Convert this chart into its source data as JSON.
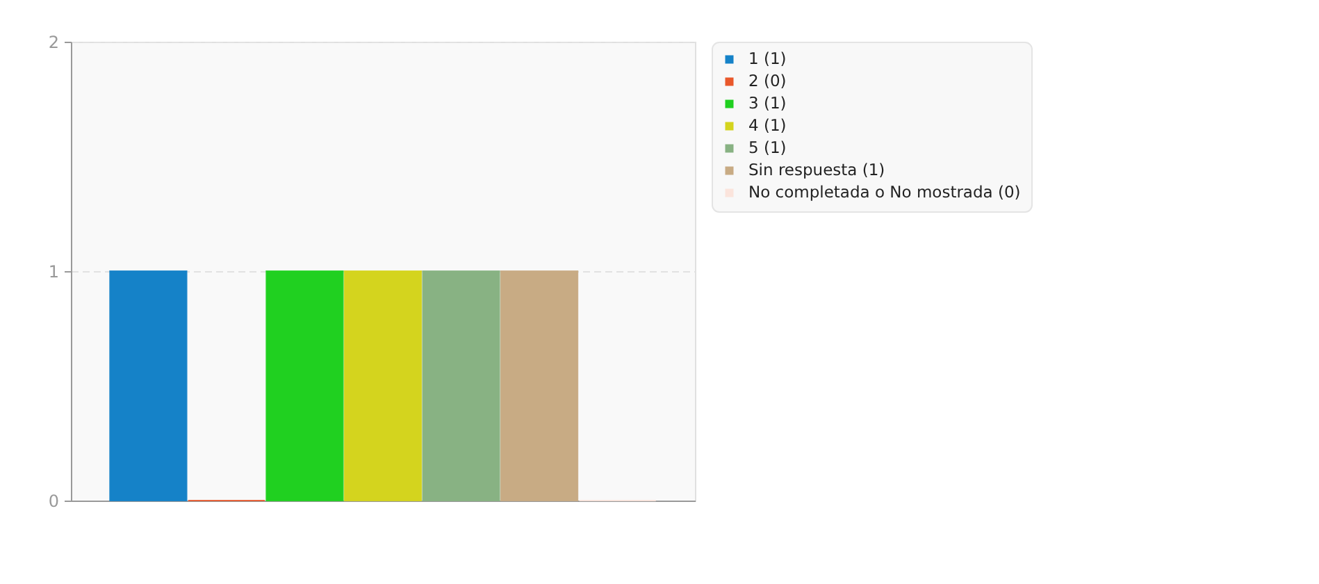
{
  "chart_data": {
    "type": "bar",
    "categories": [
      null,
      null,
      null,
      null,
      null,
      null,
      null
    ],
    "series": [
      {
        "name": "1 (1)",
        "color": "#1582c8",
        "values": [
          1,
          null,
          null,
          null,
          null,
          null,
          null
        ]
      },
      {
        "name": "2 (0)",
        "color": "#e9582b",
        "values": [
          null,
          0,
          null,
          null,
          null,
          null,
          null
        ]
      },
      {
        "name": "3 (1)",
        "color": "#20d020",
        "values": [
          null,
          null,
          1,
          null,
          null,
          null,
          null
        ]
      },
      {
        "name": "4 (1)",
        "color": "#d4d41e",
        "values": [
          null,
          null,
          null,
          1,
          null,
          null,
          null
        ]
      },
      {
        "name": "5 (1)",
        "color": "#88b283",
        "values": [
          null,
          null,
          null,
          null,
          1,
          null,
          null
        ]
      },
      {
        "name": "Sin respuesta (1)",
        "color": "#c8ab84",
        "values": [
          null,
          null,
          null,
          null,
          null,
          1,
          null
        ]
      },
      {
        "name": "No completada o No mostrada (0)",
        "color": "#fbe4dc",
        "values": [
          null,
          null,
          null,
          null,
          null,
          null,
          0
        ]
      }
    ],
    "ylim": [
      0,
      2
    ],
    "yticks": [
      0,
      1,
      2
    ],
    "grid": "y",
    "legend": "right",
    "tick_labels": "y"
  }
}
